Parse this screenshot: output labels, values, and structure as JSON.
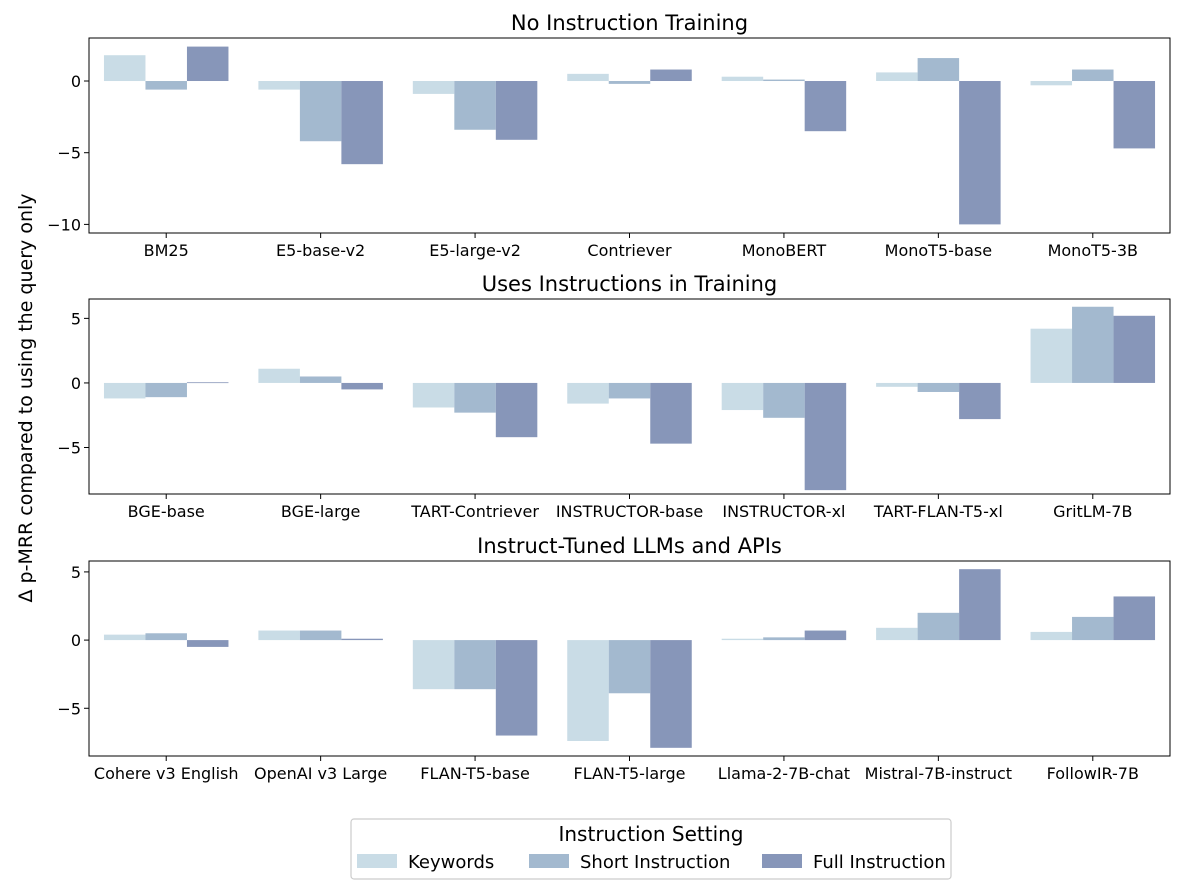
{
  "figure": {
    "ylabel": "Δ p-MRR compared to using the query only",
    "legend": {
      "title": "Instruction Setting",
      "placement": "bottom-center",
      "entries": [
        "Keywords",
        "Short Instruction",
        "Full Instruction"
      ]
    },
    "colors": {
      "Keywords": "#c9dce6",
      "Short Instruction": "#a3b9cf",
      "Full Instruction": "#8796b9"
    }
  },
  "chart_data": [
    {
      "type": "bar",
      "title": "No Instruction Training",
      "categories": [
        "BM25",
        "E5-base-v2",
        "E5-large-v2",
        "Contriever",
        "MonoBERT",
        "MonoT5-base",
        "MonoT5-3B"
      ],
      "series": [
        {
          "name": "Keywords",
          "values": [
            1.8,
            -0.6,
            -0.9,
            0.5,
            0.3,
            0.6,
            -0.3
          ]
        },
        {
          "name": "Short Instruction",
          "values": [
            -0.6,
            -4.2,
            -3.4,
            -0.2,
            0.1,
            1.6,
            0.8
          ]
        },
        {
          "name": "Full Instruction",
          "values": [
            2.4,
            -5.8,
            -4.1,
            0.8,
            -3.5,
            -10.0,
            -4.7
          ]
        }
      ],
      "ylim": [
        -10.6,
        3.0
      ],
      "yticks": [
        0,
        -5,
        -10
      ],
      "ytick_labels": [
        "0",
        "−5",
        "−10"
      ],
      "grid": false
    },
    {
      "type": "bar",
      "title": "Uses Instructions in Training",
      "categories": [
        "BGE-base",
        "BGE-large",
        "TART-Contriever",
        "INSTRUCTOR-base",
        "INSTRUCTOR-xl",
        "TART-FLAN-T5-xl",
        "GritLM-7B"
      ],
      "series": [
        {
          "name": "Keywords",
          "values": [
            -1.2,
            1.1,
            -1.9,
            -1.6,
            -2.1,
            -0.3,
            4.2
          ]
        },
        {
          "name": "Short Instruction",
          "values": [
            -1.1,
            0.5,
            -2.3,
            -1.2,
            -2.7,
            -0.7,
            5.9
          ]
        },
        {
          "name": "Full Instruction",
          "values": [
            0.05,
            -0.5,
            -4.2,
            -4.7,
            -8.3,
            -2.8,
            5.2
          ]
        }
      ],
      "ylim": [
        -8.6,
        6.5
      ],
      "yticks": [
        5,
        0,
        -5
      ],
      "ytick_labels": [
        "5",
        "0",
        "−5"
      ],
      "grid": false
    },
    {
      "type": "bar",
      "title": "Instruct-Tuned LLMs and APIs",
      "categories": [
        "Cohere v3 English",
        "OpenAI v3 Large",
        "FLAN-T5-base",
        "FLAN-T5-large",
        "Llama-2-7B-chat",
        "Mistral-7B-instruct",
        "FollowIR-7B"
      ],
      "series": [
        {
          "name": "Keywords",
          "values": [
            0.4,
            0.7,
            -3.6,
            -7.4,
            0.1,
            0.9,
            0.6
          ]
        },
        {
          "name": "Short Instruction",
          "values": [
            0.5,
            0.7,
            -3.6,
            -3.9,
            0.2,
            2.0,
            1.7
          ]
        },
        {
          "name": "Full Instruction",
          "values": [
            -0.5,
            0.1,
            -7.0,
            -7.9,
            0.7,
            5.2,
            3.2
          ]
        }
      ],
      "ylim": [
        -8.5,
        5.8
      ],
      "yticks": [
        5,
        0,
        -5
      ],
      "ytick_labels": [
        "5",
        "0",
        "−5"
      ],
      "grid": false
    }
  ]
}
